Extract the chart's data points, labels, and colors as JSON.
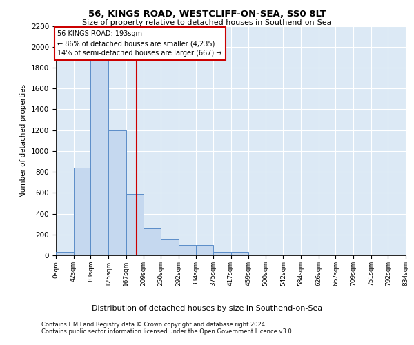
{
  "title_line1": "56, KINGS ROAD, WESTCLIFF-ON-SEA, SS0 8LT",
  "title_line2": "Size of property relative to detached houses in Southend-on-Sea",
  "xlabel": "Distribution of detached houses by size in Southend-on-Sea",
  "ylabel": "Number of detached properties",
  "footnote": "Contains HM Land Registry data © Crown copyright and database right 2024.\nContains public sector information licensed under the Open Government Licence v3.0.",
  "annotation_line1": "56 KINGS ROAD: 193sqm",
  "annotation_line2": "← 86% of detached houses are smaller (4,235)",
  "annotation_line3": "14% of semi-detached houses are larger (667) →",
  "bar_color": "#c5d8ef",
  "bar_edge_color": "#5b8dc8",
  "vline_color": "#cc0000",
  "vline_x": 193,
  "background_color": "#dce9f5",
  "grid_color": "#ffffff",
  "bin_edges": [
    0,
    42,
    83,
    125,
    167,
    209,
    250,
    292,
    334,
    375,
    417,
    459,
    500,
    542,
    584,
    626,
    667,
    709,
    751,
    792,
    834
  ],
  "bar_heights": [
    30,
    840,
    1870,
    1200,
    590,
    260,
    150,
    100,
    100,
    30,
    30,
    0,
    0,
    0,
    0,
    0,
    0,
    0,
    0,
    0
  ],
  "ylim": [
    0,
    2200
  ],
  "yticks": [
    0,
    200,
    400,
    600,
    800,
    1000,
    1200,
    1400,
    1600,
    1800,
    2000,
    2200
  ]
}
